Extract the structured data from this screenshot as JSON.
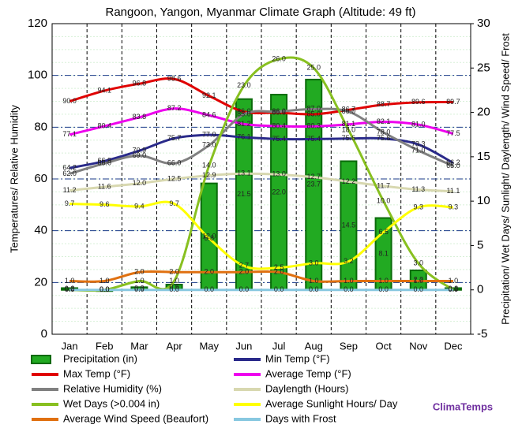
{
  "chart_data": {
    "type": "combo",
    "title": "Rangoon, Yangon, Myanmar Climate Graph (Altitude: 49 ft)",
    "y_label": "Temperatures/ Relative Humidity",
    "y2_label": "Precipitation/ Wet Days/ Sunlight/ Daylength/ Wind Speed/ Frost",
    "watermark": "ClimaTemps",
    "categories": [
      "Jan",
      "Feb",
      "Mar",
      "Apr",
      "May",
      "Jun",
      "Jul",
      "Aug",
      "Sep",
      "Oct",
      "Nov",
      "Dec"
    ],
    "ylim": [
      0,
      120
    ],
    "yticks": [
      0,
      20,
      40,
      60,
      80,
      100,
      120
    ],
    "y2lim": [
      -5,
      30
    ],
    "y2ticks": [
      -5,
      0,
      5,
      10,
      15,
      20,
      25,
      30
    ],
    "grid": true,
    "series": [
      {
        "name": "Precipitation (in)",
        "type": "bar",
        "axis": "y2",
        "color": "#22aa22",
        "values": [
          0.2,
          0.0,
          0.3,
          0.6,
          12.0,
          21.5,
          22.0,
          23.7,
          14.5,
          8.1,
          2.2,
          0.2
        ],
        "value_labels": [
          "0.2",
          "0.0",
          "0.3",
          "0.6",
          "12.0",
          "21.5",
          "22.0",
          "23.7",
          "14.5",
          "8.1",
          "2.2",
          "0.2"
        ]
      },
      {
        "name": "Min Temp (°F)",
        "type": "line",
        "axis": "y",
        "color": "#2a2a8a",
        "values": [
          64.2,
          66.9,
          70.9,
          75.7,
          77.0,
          76.1,
          75.4,
          75.4,
          75.6,
          75.6,
          73.3,
          66.2
        ],
        "value_labels": [
          "64.2",
          "66.9",
          "70.9",
          "75.7",
          "77.0",
          "76.1",
          "75.4",
          "75.4",
          "75.6",
          "75.6",
          "73.3",
          "66.2"
        ]
      },
      {
        "name": "Max Temp (°F)",
        "type": "line",
        "axis": "y",
        "color": "#e00000",
        "values": [
          90.0,
          94.1,
          96.8,
          98.6,
          92.1,
          86.0,
          85.6,
          85.0,
          86.7,
          88.7,
          89.6,
          89.7
        ],
        "value_labels": [
          "90.0",
          "94.1",
          "96.8",
          "98.6",
          "92.1",
          "86.0",
          "85.6",
          "85.0",
          "86.7",
          "88.7",
          "89.6",
          "89.7"
        ]
      },
      {
        "name": "Average Temp (°F)",
        "type": "line",
        "axis": "y",
        "color": "#ee00ee",
        "values": [
          77.1,
          80.4,
          83.8,
          87.2,
          84.6,
          81.2,
          80.4,
          80.3,
          81.1,
          82.1,
          81.0,
          77.5
        ],
        "value_labels": [
          "77.1",
          "80.4",
          "83.8",
          "87.2",
          "84.6",
          "81.2",
          "80.4",
          "80.3",
          "81.1",
          "82.1",
          "81.0",
          "77.5"
        ]
      },
      {
        "name": "Relative Humidity (%)",
        "type": "line",
        "axis": "y",
        "color": "#808080",
        "values": [
          62.0,
          66.0,
          69.0,
          66.0,
          73.0,
          85.0,
          86.0,
          87.0,
          86.0,
          78.0,
          71.0,
          65.0
        ],
        "value_labels": [
          "62.0",
          "66.0",
          "69.0",
          "66.0",
          "73.0",
          "85.0",
          "86.0",
          "87.0",
          "86.0",
          "78.0",
          "71.0",
          "65.0"
        ]
      },
      {
        "name": "Daylength (Hours)",
        "type": "line",
        "axis": "y2",
        "color": "#d8d8b0",
        "values": [
          11.2,
          11.6,
          12.0,
          12.5,
          12.9,
          13.1,
          13.0,
          12.7,
          12.2,
          11.7,
          11.3,
          11.1
        ],
        "value_labels": [
          "11.2",
          "11.6",
          "12.0",
          "12.5",
          "12.9",
          "13.1",
          "13.0",
          "12.7",
          "12.2",
          "11.7",
          "11.3",
          "11.1"
        ]
      },
      {
        "name": "Wet Days (>0.004 in)",
        "type": "line",
        "axis": "y2",
        "color": "#88c020",
        "values": [
          0.0,
          0.0,
          1.0,
          1.0,
          14.0,
          23.0,
          26.0,
          25.0,
          18.0,
          10.0,
          3.0,
          0.0
        ],
        "value_labels": [
          "0.0",
          "0.0",
          "1.0",
          "1.0",
          "14.0",
          "23.0",
          "26.0",
          "25.0",
          "18.0",
          "10.0",
          "3.0",
          "0.0"
        ]
      },
      {
        "name": "Average Sunlight Hours/ Day",
        "type": "line",
        "axis": "y2",
        "color": "#ffff00",
        "values": [
          9.7,
          9.6,
          9.4,
          9.7,
          5.8,
          2.7,
          2.5,
          3.0,
          3.2,
          6.5,
          9.3,
          9.3
        ],
        "value_labels": [
          "9.7",
          "9.6",
          "9.4",
          "9.7",
          "5.8",
          "2.7",
          "2.5",
          "3.0",
          "3.2",
          "6.5",
          "9.3",
          "9.3"
        ]
      },
      {
        "name": "Average Wind Speed (Beaufort)",
        "type": "line",
        "axis": "y2",
        "color": "#e07010",
        "values": [
          1.0,
          1.0,
          2.0,
          2.0,
          2.0,
          2.0,
          2.0,
          1.0,
          1.0,
          1.0,
          1.0,
          1.0
        ],
        "value_labels": [
          "1.0",
          "1.0",
          "2.0",
          "2.0",
          "2.0",
          "2.0",
          "2.0",
          "1.0",
          "1.0",
          "1.0",
          "1.0",
          "1.0"
        ]
      },
      {
        "name": "Days with Frost",
        "type": "line",
        "axis": "y2",
        "color": "#88c8e0",
        "values": [
          0.0,
          0.0,
          0.0,
          0.0,
          0.0,
          0.0,
          0.0,
          0.0,
          0.0,
          0.0,
          0.0,
          0.0
        ],
        "value_labels": [
          "0.0",
          "0.0",
          "0.0",
          "0.0",
          "0.0",
          "0.0",
          "0.0",
          "0.0",
          "0.0",
          "0.0",
          "0.0",
          "0.0"
        ]
      }
    ]
  }
}
